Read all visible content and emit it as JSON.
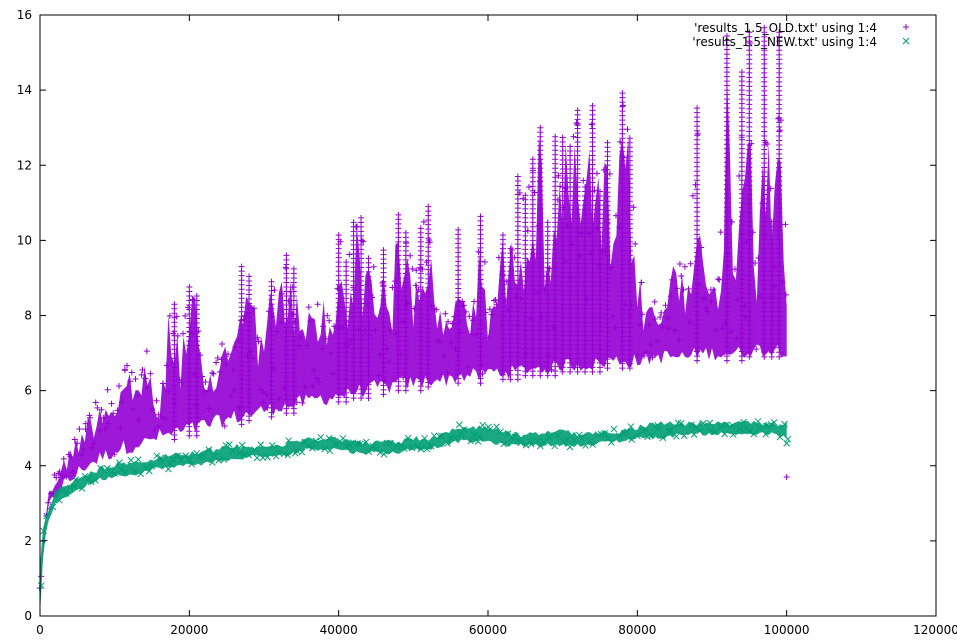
{
  "chart_data": {
    "type": "scatter",
    "title": "",
    "xlabel": "",
    "ylabel": "",
    "xlim": [
      0,
      120000
    ],
    "ylim": [
      0,
      16
    ],
    "grid": false,
    "legend_position": "top-right",
    "x_ticks": [
      0,
      20000,
      40000,
      60000,
      80000,
      100000,
      120000
    ],
    "y_ticks": [
      0,
      2,
      4,
      6,
      8,
      10,
      12,
      14,
      16
    ],
    "x_tick_labels": [
      "0",
      "20000",
      "40000",
      "60000",
      "80000",
      "100000",
      "120000"
    ],
    "y_tick_labels": [
      "0",
      "2",
      "4",
      "6",
      "8",
      "10",
      "12",
      "14",
      "16"
    ],
    "series": [
      {
        "name": "'results_1.5_OLD.txt' using 1:4",
        "marker": "plus",
        "color": "#9400d3",
        "x": [
          0,
          500,
          1000,
          2000,
          3000,
          4000,
          5000,
          6000,
          7000,
          8000,
          9000,
          10000,
          11000,
          12000,
          13000,
          14000,
          15000,
          16000,
          17000,
          18000,
          19000,
          20000,
          21000,
          22000,
          23000,
          24000,
          25000,
          26000,
          27000,
          28000,
          29000,
          30000,
          31000,
          32000,
          33000,
          34000,
          35000,
          36000,
          37000,
          38000,
          39000,
          40000,
          41000,
          42000,
          43000,
          44000,
          45000,
          46000,
          47000,
          48000,
          49000,
          50000,
          51000,
          52000,
          53000,
          54000,
          55000,
          56000,
          57000,
          58000,
          59000,
          60000,
          61000,
          62000,
          63000,
          64000,
          65000,
          66000,
          67000,
          68000,
          69000,
          70000,
          71000,
          72000,
          73000,
          74000,
          75000,
          76000,
          77000,
          78000,
          79000,
          80000,
          81000,
          82000,
          83000,
          84000,
          85000,
          86000,
          87000,
          88000,
          89000,
          90000,
          91000,
          92000,
          93000,
          94000,
          95000,
          96000,
          97000,
          98000,
          99000,
          100000
        ],
        "y_low": [
          0.2,
          1.5,
          2.6,
          3.0,
          3.3,
          3.4,
          3.6,
          3.8,
          3.9,
          4.0,
          4.1,
          4.2,
          4.3,
          4.3,
          4.4,
          4.4,
          4.5,
          4.6,
          4.6,
          4.7,
          4.7,
          4.8,
          4.8,
          4.9,
          4.9,
          5.0,
          5.0,
          5.1,
          5.1,
          5.2,
          5.2,
          5.3,
          5.3,
          5.4,
          5.4,
          5.4,
          5.5,
          5.5,
          5.6,
          5.6,
          5.6,
          5.7,
          5.7,
          5.8,
          5.8,
          5.8,
          5.9,
          5.9,
          5.9,
          6.0,
          6.0,
          6.0,
          6.0,
          6.1,
          6.1,
          6.1,
          6.1,
          6.2,
          6.2,
          6.2,
          6.2,
          6.3,
          6.3,
          6.3,
          6.3,
          6.3,
          6.4,
          6.4,
          6.4,
          6.4,
          6.4,
          6.5,
          6.5,
          6.5,
          6.5,
          6.5,
          6.5,
          6.6,
          6.6,
          6.6,
          6.6,
          6.6,
          6.6,
          6.7,
          6.7,
          6.7,
          6.7,
          6.7,
          6.7,
          6.8,
          6.8,
          6.8,
          6.8,
          6.8,
          6.8,
          6.8,
          6.9,
          6.9,
          6.9,
          6.9,
          6.9,
          6.9
        ],
        "y_high": [
          1.2,
          2.5,
          3.3,
          3.8,
          4.2,
          4.5,
          5.0,
          5.3,
          5.6,
          6.0,
          6.1,
          6.0,
          6.5,
          6.8,
          6.2,
          7.6,
          6.1,
          5.5,
          8.0,
          8.3,
          7.5,
          8.8,
          8.6,
          6.2,
          6.5,
          7.2,
          7.6,
          8.5,
          9.4,
          9.1,
          8.2,
          8.4,
          9.0,
          8.8,
          9.7,
          9.3,
          7.8,
          8.5,
          8.3,
          8.9,
          7.6,
          10.2,
          9.5,
          10.5,
          10.7,
          9.6,
          9.4,
          9.8,
          8.8,
          10.7,
          10.2,
          9.0,
          10.4,
          10.9,
          8.2,
          8.2,
          7.8,
          10.3,
          8.5,
          8.4,
          10.7,
          8.5,
          9.2,
          10.2,
          9.8,
          11.7,
          11.2,
          12.2,
          13.0,
          10.5,
          12.8,
          12.8,
          12.5,
          13.5,
          11.5,
          13.6,
          11.4,
          12.6,
          9.8,
          14.0,
          12.8,
          9.5,
          8.4,
          8.6,
          8.0,
          9.3,
          9.6,
          9.8,
          9.2,
          13.6,
          9.0,
          8.8,
          9.2,
          15.5,
          9.4,
          14.5,
          15.6,
          9.5,
          15.7,
          10.6,
          15.6,
          8.9
        ],
        "y_outliers": [
          {
            "x": 100000,
            "y": 3.7
          }
        ]
      },
      {
        "name": "'results_1.5_NEW.txt' using 1:4",
        "marker": "cross",
        "color": "#009e73",
        "x": [
          0,
          500,
          1000,
          2000,
          3000,
          4000,
          5000,
          6000,
          7000,
          8000,
          9000,
          10000,
          12000,
          14000,
          16000,
          18000,
          20000,
          22000,
          24000,
          26000,
          28000,
          30000,
          32000,
          34000,
          36000,
          38000,
          40000,
          42000,
          44000,
          46000,
          48000,
          50000,
          52000,
          54000,
          56000,
          58000,
          60000,
          62000,
          64000,
          66000,
          68000,
          70000,
          72000,
          74000,
          76000,
          78000,
          80000,
          82000,
          84000,
          86000,
          88000,
          90000,
          92000,
          94000,
          96000,
          98000,
          100000
        ],
        "y_low": [
          0.0,
          1.8,
          2.4,
          2.9,
          3.1,
          3.2,
          3.3,
          3.4,
          3.5,
          3.6,
          3.6,
          3.7,
          3.7,
          3.8,
          3.9,
          3.9,
          4.0,
          4.0,
          4.1,
          4.1,
          4.2,
          4.2,
          4.2,
          4.3,
          4.4,
          4.4,
          4.4,
          4.3,
          4.3,
          4.3,
          4.3,
          4.4,
          4.4,
          4.5,
          4.6,
          4.6,
          4.6,
          4.5,
          4.5,
          4.5,
          4.5,
          4.5,
          4.5,
          4.5,
          4.6,
          4.6,
          4.7,
          4.7,
          4.7,
          4.8,
          4.8,
          4.8,
          4.8,
          4.8,
          4.8,
          4.8,
          4.7
        ],
        "y_high": [
          1.5,
          2.6,
          2.9,
          3.3,
          3.5,
          3.6,
          3.7,
          3.8,
          3.9,
          4.0,
          4.0,
          4.1,
          4.2,
          4.2,
          4.3,
          4.4,
          4.4,
          4.5,
          4.5,
          4.6,
          4.6,
          4.6,
          4.6,
          4.7,
          4.8,
          4.8,
          4.8,
          4.7,
          4.7,
          4.7,
          4.7,
          4.8,
          4.8,
          4.9,
          5.1,
          5.1,
          5.1,
          5.0,
          4.9,
          4.9,
          5.0,
          5.0,
          4.9,
          4.9,
          5.0,
          5.0,
          5.1,
          5.2,
          5.2,
          5.2,
          5.2,
          5.2,
          5.2,
          5.2,
          5.2,
          5.2,
          5.2
        ],
        "y_outliers": [
          {
            "x": 100000,
            "y": 4.6
          }
        ]
      }
    ]
  }
}
